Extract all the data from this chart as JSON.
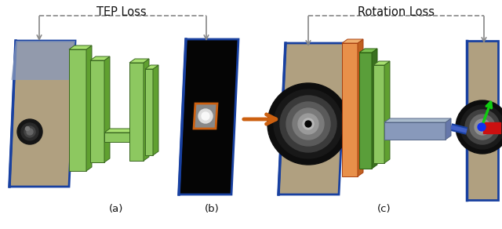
{
  "title_left": "TEP Loss",
  "title_right": "Rotation Loss",
  "label_a": "(a)",
  "label_b": "(b)",
  "label_c": "(c)",
  "bg_color": "#ffffff",
  "green_face": "#8dc860",
  "green_side": "#60a030",
  "green_top": "#a8e070",
  "orange_face": "#e8904a",
  "orange_side": "#c06020",
  "orange_top": "#f0b070",
  "gray_face": "#8899bb",
  "gray_side": "#6677aa",
  "gray_top": "#aabbcc",
  "blue_border": "#1840a0",
  "blue_line": "#1840a0",
  "orange_arrow_color": "#cc6010",
  "dashed_color": "#888888",
  "text_color": "#111111"
}
